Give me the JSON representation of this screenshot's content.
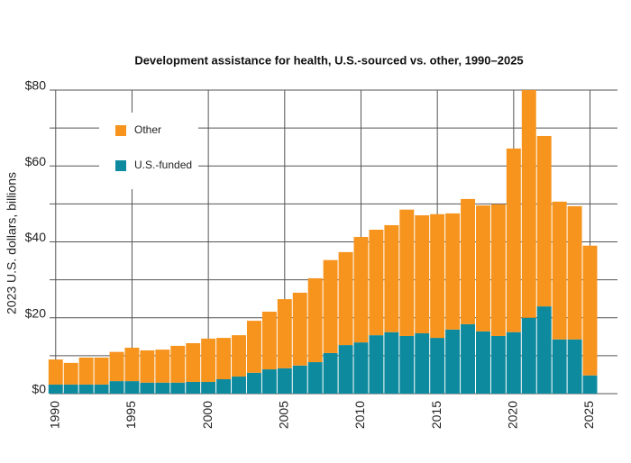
{
  "chart_data": {
    "type": "stacked_bar",
    "title": "Development assistance for health, U.S.-sourced vs. other, 1990–2025",
    "y_label": "2023 U.S. dollars, billions",
    "x": [
      1990,
      1991,
      1992,
      1993,
      1994,
      1995,
      1996,
      1997,
      1998,
      1999,
      2000,
      2001,
      2002,
      2003,
      2004,
      2005,
      2006,
      2007,
      2008,
      2009,
      2010,
      2011,
      2012,
      2013,
      2014,
      2015,
      2016,
      2017,
      2018,
      2019,
      2020,
      2021,
      2022,
      2023,
      2024,
      2025
    ],
    "series": [
      {
        "name": "U.S.-funded",
        "color": "#0e8a9e",
        "values": [
          2.4,
          2.4,
          2.4,
          2.4,
          3.3,
          3.3,
          2.9,
          2.9,
          2.9,
          3.1,
          3.1,
          3.8,
          4.5,
          5.5,
          6.4,
          6.7,
          7.4,
          8.3,
          10.7,
          12.8,
          13.5,
          15.4,
          16.2,
          15.2,
          15.9,
          14.7,
          16.9,
          18.3,
          16.4,
          15.2,
          16.2,
          20,
          23,
          14.3,
          14.3,
          4.8
        ]
      },
      {
        "name": "Other",
        "color": "#f7941d",
        "values": [
          6.6,
          5.7,
          7.1,
          7.1,
          7.7,
          8.8,
          8.5,
          8.7,
          9.7,
          10.2,
          11.4,
          10.9,
          10.9,
          13.7,
          15.2,
          18.2,
          19.2,
          22.1,
          24.5,
          24.5,
          27.8,
          27.8,
          28.2,
          33.3,
          31.1,
          32.6,
          30.6,
          33,
          33.2,
          34.7,
          48.4,
          60,
          44.9,
          36.3,
          35.1,
          34.2
        ]
      }
    ],
    "xlim": [
      1989.6,
      2026.8
    ],
    "xticks": [
      1990,
      1995,
      2000,
      2005,
      2010,
      2015,
      2020,
      2025
    ],
    "ylim": [
      0,
      80
    ],
    "yticks": [
      {
        "value": 0,
        "label": "$0"
      },
      {
        "value": 20,
        "label": "$20"
      },
      {
        "value": 40,
        "label": "$40"
      },
      {
        "value": 60,
        "label": "$60"
      },
      {
        "value": 80,
        "label": "$80"
      }
    ],
    "minor_yticks": [
      10,
      30,
      50,
      70
    ],
    "grid": true,
    "legend": "upper left"
  }
}
